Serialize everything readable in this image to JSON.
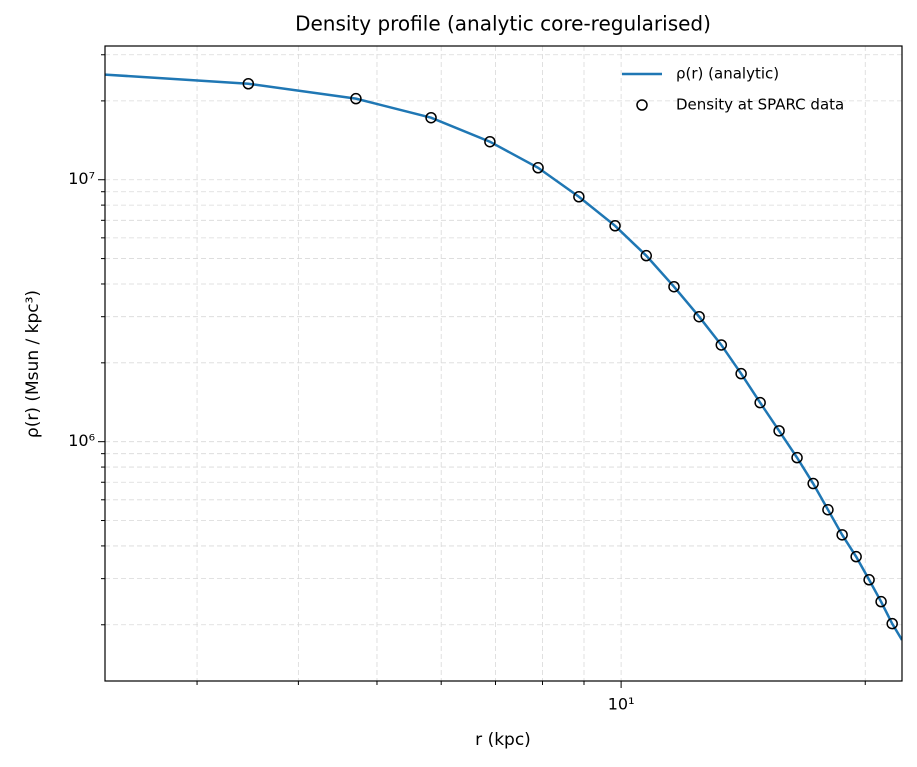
{
  "chart_data": {
    "type": "line",
    "title": "Density profile (analytic core-regularised)",
    "xlabel": "r (kpc)",
    "ylabel": "ρ(r) (Msun / kpc³)",
    "xscale": "log",
    "yscale": "log",
    "grid": true,
    "legend": "upper right",
    "xlim": [
      2.31,
      22.2
    ],
    "ylim": [
      122000,
      32400000
    ],
    "xticks": [
      {
        "value": 10,
        "label": "10¹"
      }
    ],
    "yticks": [
      {
        "value": 1000000,
        "label": "10⁶"
      },
      {
        "value": 10000000,
        "label": "10⁷"
      }
    ],
    "xminor": [
      3,
      4,
      5,
      6,
      7,
      8,
      9,
      20
    ],
    "yminor": [
      200000,
      300000,
      400000,
      500000,
      600000,
      700000,
      800000,
      900000,
      2000000,
      3000000,
      4000000,
      5000000,
      6000000,
      7000000,
      8000000,
      9000000,
      20000000,
      30000000
    ],
    "series": [
      {
        "name": "ρ(r) (analytic)",
        "kind": "line",
        "color": "#1f77b4",
        "x": [
          2.31,
          3.47,
          4.71,
          5.83,
          6.89,
          7.9,
          8.87,
          9.83,
          10.74,
          11.62,
          12.48,
          13.29,
          14.06,
          14.84,
          15.66,
          16.48,
          17.25,
          17.99,
          18.73,
          19.49,
          20.22,
          20.92,
          21.59,
          22.2
        ],
        "values": [
          25200000,
          23250000,
          20400000,
          17250000,
          13970000,
          11110000,
          8610000,
          6670000,
          5130000,
          3905000,
          3000000,
          2340000,
          1818000,
          1409000,
          1100000,
          869000,
          692000,
          550000,
          441000,
          364000,
          297000,
          245000,
          202000,
          175000
        ]
      },
      {
        "name": "Density at SPARC data",
        "kind": "scatter",
        "color": "#000000",
        "x": [
          3.47,
          4.71,
          5.83,
          6.89,
          7.9,
          8.87,
          9.83,
          10.74,
          11.62,
          12.48,
          13.29,
          14.06,
          14.84,
          15.66,
          16.48,
          17.25,
          17.99,
          18.73,
          19.49,
          20.22,
          20.92,
          21.59
        ],
        "values": [
          23250000,
          20400000,
          17250000,
          13970000,
          11110000,
          8610000,
          6670000,
          5130000,
          3905000,
          3000000,
          2340000,
          1818000,
          1409000,
          1100000,
          869000,
          692000,
          550000,
          441000,
          364000,
          297000,
          245000,
          202000
        ]
      }
    ]
  }
}
